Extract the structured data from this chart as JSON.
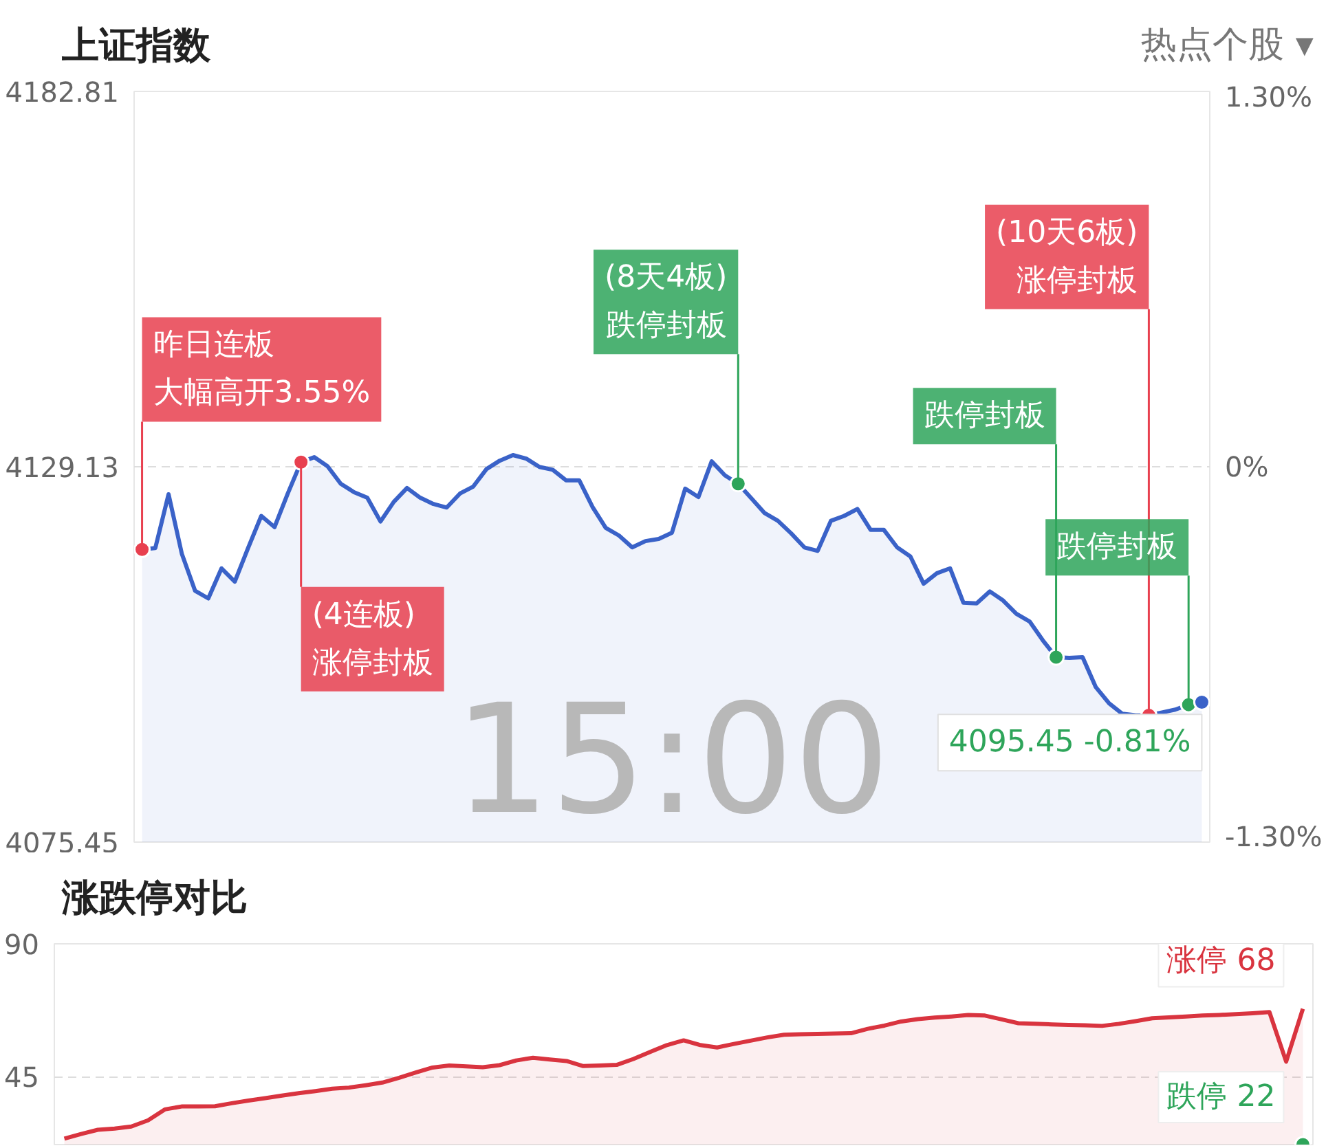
{
  "chart_data": [
    {
      "type": "area",
      "title": "上证指数",
      "categories": [
        null,
        null,
        null,
        null,
        null,
        null,
        null,
        null,
        null,
        null,
        null,
        null,
        null,
        null,
        null,
        null,
        null,
        null,
        null,
        null,
        null,
        null,
        null,
        null,
        null,
        null,
        null,
        null,
        null,
        null,
        null,
        null,
        null,
        null,
        null,
        null,
        null,
        null,
        null,
        null,
        null,
        null,
        null,
        null,
        null,
        null,
        null,
        null,
        null,
        null,
        null,
        null,
        null,
        null,
        null,
        null,
        null,
        null,
        null,
        null,
        null,
        null,
        null,
        null,
        null,
        null,
        null,
        null,
        null,
        null,
        null,
        null,
        null,
        null,
        null,
        null,
        null,
        null,
        null,
        null,
        null
      ],
      "ylim": [
        4075.45,
        4182.81
      ],
      "yticks": [
        4075.45,
        4129.13,
        4182.81
      ],
      "y2lim": [
        -1.3,
        1.3
      ],
      "y2ticks": [
        {
          "value": -1.3,
          "label": "-1.30%"
        },
        {
          "value": 0,
          "label": "0%"
        },
        {
          "value": 1.3,
          "label": "1.30%"
        }
      ],
      "tick_labels": "y",
      "grid": "y",
      "series": [
        {
          "type": "area",
          "color": "#3a62c8",
          "values": [
            4117.3,
            4117.5,
            4125.2,
            4116.7,
            4111.4,
            4110.3,
            4114.6,
            4112.7,
            4117.5,
            4122.1,
            4120.5,
            4125.3,
            4129.8,
            4130.5,
            4129.2,
            4126.7,
            4125.5,
            4124.7,
            4121.3,
            4124.1,
            4126.1,
            4124.7,
            4123.8,
            4123.3,
            4125.3,
            4126.3,
            4128.8,
            4130.0,
            4130.8,
            4130.3,
            4129.1,
            4128.7,
            4127.2,
            4127.2,
            4123.4,
            4120.4,
            4119.3,
            4117.6,
            4118.5,
            4118.8,
            4119.7,
            4126.0,
            4124.8,
            4129.9,
            4127.9,
            4126.7,
            4124.6,
            4122.5,
            4121.4,
            4119.6,
            4117.6,
            4117.1,
            4121.4,
            4122.1,
            4123.1,
            4120.1,
            4120.1,
            4117.6,
            4116.3,
            4112.4,
            4113.9,
            4114.6,
            4109.7,
            4109.6,
            4111.3,
            4110.0,
            4108.1,
            4107.0,
            4104.3,
            4101.9,
            4101.8,
            4101.9,
            4097.6,
            4095.3,
            4093.8,
            4093.6,
            4093.6,
            4094.0,
            4094.4,
            4095.1,
            4095.45
          ]
        },
        {
          "type": "scatter",
          "color": "#e8404f",
          "values": [
            4117.3,
            null,
            null,
            null,
            null,
            null,
            null,
            null,
            null,
            null,
            null,
            null,
            4129.8,
            null,
            null,
            null,
            null,
            null,
            null,
            null,
            null,
            null,
            null,
            null,
            null,
            null,
            null,
            null,
            null,
            null,
            null,
            null,
            null,
            null,
            null,
            null,
            null,
            null,
            null,
            null,
            null,
            null,
            null,
            null,
            null,
            null,
            null,
            null,
            null,
            null,
            null,
            null,
            null,
            null,
            null,
            null,
            null,
            null,
            null,
            null,
            null,
            null,
            null,
            null,
            null,
            null,
            null,
            null,
            null,
            null,
            null,
            null,
            null,
            null,
            null,
            null,
            4093.6,
            null,
            null,
            null,
            null
          ]
        },
        {
          "type": "scatter",
          "color": "#2ea55a",
          "values": [
            null,
            null,
            null,
            null,
            null,
            null,
            null,
            null,
            null,
            null,
            null,
            null,
            null,
            null,
            null,
            null,
            null,
            null,
            null,
            null,
            null,
            null,
            null,
            null,
            null,
            null,
            null,
            null,
            null,
            null,
            null,
            null,
            null,
            null,
            null,
            null,
            null,
            null,
            null,
            null,
            null,
            null,
            null,
            null,
            null,
            4126.7,
            null,
            null,
            null,
            null,
            null,
            null,
            null,
            null,
            null,
            null,
            null,
            null,
            null,
            null,
            null,
            null,
            null,
            null,
            null,
            null,
            null,
            null,
            null,
            4101.9,
            null,
            null,
            null,
            null,
            null,
            null,
            null,
            null,
            null,
            4095.1,
            null
          ]
        },
        {
          "type": "scatter",
          "color": "#3a62c8",
          "values": [
            null,
            null,
            null,
            null,
            null,
            null,
            null,
            null,
            null,
            null,
            null,
            null,
            null,
            null,
            null,
            null,
            null,
            null,
            null,
            null,
            null,
            null,
            null,
            null,
            null,
            null,
            null,
            null,
            null,
            null,
            null,
            null,
            null,
            null,
            null,
            null,
            null,
            null,
            null,
            null,
            null,
            null,
            null,
            null,
            null,
            null,
            null,
            null,
            null,
            null,
            null,
            null,
            null,
            null,
            null,
            null,
            null,
            null,
            null,
            null,
            null,
            null,
            null,
            null,
            null,
            null,
            null,
            null,
            null,
            null,
            null,
            null,
            null,
            null,
            null,
            null,
            null,
            null,
            null,
            null,
            4095.45
          ]
        }
      ],
      "annotations": [
        "热点个股 ▾",
        "15:00",
        "昨日连板大幅高开3.55%",
        "(4连板)涨停封板",
        "(8天4板)跌停封板",
        "(10天6板)涨停封板",
        "跌停封板",
        "跌停封板",
        "4095.45 -0.81%"
      ]
    },
    {
      "type": "area",
      "title": "涨跌停对比",
      "categories": [
        null,
        null,
        null,
        null,
        null,
        null,
        null,
        null,
        null,
        null,
        null,
        null,
        null,
        null,
        null,
        null,
        null,
        null,
        null,
        null,
        null,
        null,
        null,
        null,
        null,
        null,
        null,
        null,
        null,
        null,
        null,
        null,
        null,
        null,
        null,
        null,
        null,
        null,
        null,
        null,
        null,
        null,
        null,
        null,
        null,
        null,
        null,
        null,
        null,
        null,
        null,
        null,
        null,
        null,
        null,
        null,
        null,
        null,
        null,
        null,
        null,
        null,
        null,
        null,
        null,
        null,
        null,
        null,
        null,
        null,
        null,
        null,
        null,
        null,
        null
      ],
      "ylim": [
        22,
        90
      ],
      "yticks": [
        45,
        90
      ],
      "tick_labels": "y",
      "grid": "y",
      "series": [
        {
          "name": "涨停",
          "color": "#d9343f",
          "values": [
            24.0,
            25.6,
            27.0,
            27.4,
            28.1,
            30.2,
            33.9,
            34.9,
            34.9,
            35.0,
            36.0,
            36.9,
            37.7,
            38.6,
            39.4,
            40.1,
            40.9,
            41.3,
            42.1,
            43.0,
            44.6,
            46.4,
            48.1,
            48.8,
            48.5,
            48.2,
            48.9,
            50.5,
            51.4,
            50.8,
            50.3,
            48.6,
            48.8,
            49.0,
            51.0,
            53.4,
            55.7,
            57.3,
            55.7,
            54.9,
            56.1,
            57.2,
            58.3,
            59.2,
            59.4,
            59.5,
            59.6,
            59.7,
            61.2,
            62.3,
            63.7,
            64.5,
            65.0,
            65.4,
            65.9,
            65.7,
            64.4,
            63.1,
            62.9,
            62.7,
            62.5,
            62.4,
            62.2,
            62.9,
            63.8,
            64.8,
            65.1,
            65.4,
            65.7,
            65.9,
            66.2,
            66.5,
            66.9,
            50.1,
            68
          ],
          "value_labels": [
            null,
            null,
            null,
            null,
            null,
            null,
            null,
            null,
            null,
            null,
            null,
            null,
            null,
            null,
            null,
            null,
            null,
            null,
            null,
            null,
            null,
            null,
            null,
            null,
            null,
            null,
            null,
            null,
            null,
            null,
            null,
            null,
            null,
            null,
            null,
            null,
            null,
            null,
            null,
            null,
            null,
            null,
            null,
            null,
            null,
            null,
            null,
            null,
            null,
            null,
            null,
            null,
            null,
            null,
            null,
            null,
            null,
            null,
            null,
            null,
            null,
            null,
            null,
            null,
            null,
            null,
            null,
            null,
            null,
            null,
            null,
            null,
            null,
            null,
            "68"
          ]
        },
        {
          "name": "跌停",
          "type": "scatter",
          "color": "#2ea55a",
          "values": [
            null,
            null,
            null,
            null,
            null,
            null,
            null,
            null,
            null,
            null,
            null,
            null,
            null,
            null,
            null,
            null,
            null,
            null,
            null,
            null,
            null,
            null,
            null,
            null,
            null,
            null,
            null,
            null,
            null,
            null,
            null,
            null,
            null,
            null,
            null,
            null,
            null,
            null,
            null,
            null,
            null,
            null,
            null,
            null,
            null,
            null,
            null,
            null,
            null,
            null,
            null,
            null,
            null,
            null,
            null,
            null,
            null,
            null,
            null,
            null,
            null,
            null,
            null,
            null,
            null,
            null,
            null,
            null,
            null,
            null,
            null,
            null,
            null,
            null,
            22
          ],
          "value_labels": [
            null,
            null,
            null,
            null,
            null,
            null,
            null,
            null,
            null,
            null,
            null,
            null,
            null,
            null,
            null,
            null,
            null,
            null,
            null,
            null,
            null,
            null,
            null,
            null,
            null,
            null,
            null,
            null,
            null,
            null,
            null,
            null,
            null,
            null,
            null,
            null,
            null,
            null,
            null,
            null,
            null,
            null,
            null,
            null,
            null,
            null,
            null,
            null,
            null,
            null,
            null,
            null,
            null,
            null,
            null,
            null,
            null,
            null,
            null,
            null,
            null,
            null,
            null,
            null,
            null,
            null,
            null,
            null,
            null,
            null,
            null,
            null,
            null,
            null,
            "22"
          ]
        }
      ]
    }
  ]
}
